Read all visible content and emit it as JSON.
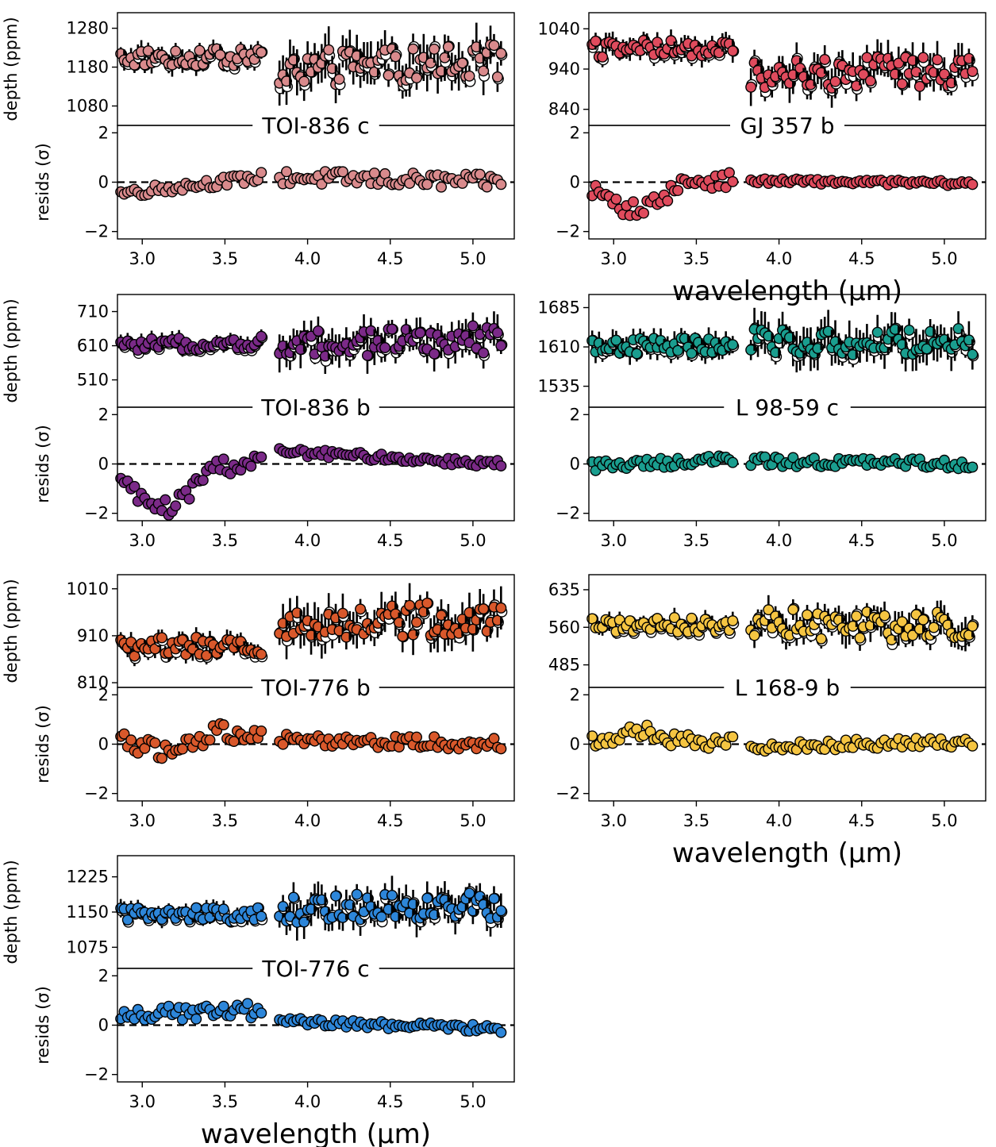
{
  "figure": {
    "depth_ylabel": "depth (ppm)",
    "resid_ylabel": "resids (σ)",
    "xlabel": "wavelength (μm)"
  },
  "chart_data": [
    {
      "type": "scatter",
      "title": "TOI-836 c",
      "color": "#d98a8c",
      "xlim": [
        2.85,
        5.25
      ],
      "x_ticks": [
        3.0,
        3.5,
        4.0,
        4.5,
        5.0
      ],
      "x_tick_labels": [
        "3.0",
        "3.5",
        "4.0",
        "4.5",
        "5.0"
      ],
      "xlabel": "",
      "depth": {
        "ylabel": "depth (ppm)",
        "ylim": [
          1030,
          1320
        ],
        "y_ticks": [
          1080,
          1180,
          1280
        ],
        "y_tick_labels": [
          "1080",
          "1180",
          "1280"
        ],
        "gap": [
          3.72,
          3.83
        ],
        "segments": [
          {
            "x_start": 2.87,
            "x_end": 3.72,
            "n": 42,
            "base": 1205,
            "trend": 0,
            "amp": 22,
            "err": 22
          },
          {
            "x_start": 3.83,
            "x_end": 5.17,
            "n": 64,
            "base": 1175,
            "trend": 20,
            "amp": 45,
            "err": 45
          }
        ]
      },
      "resid": {
        "ylabel": "resids (σ)",
        "ylim": [
          -2.3,
          2.3
        ],
        "y_ticks": [
          -2,
          0,
          2
        ],
        "y_tick_labels": [
          "−2",
          "0",
          "2"
        ],
        "segments": [
          {
            "x_start": 2.87,
            "x_end": 3.72,
            "n": 42,
            "start": -0.45,
            "end": 0.2,
            "dip": 0,
            "amp": 0.2
          },
          {
            "x_start": 3.83,
            "x_end": 5.17,
            "n": 64,
            "start": 0.2,
            "end": 0.0,
            "dip": 0,
            "amp": 0.3
          }
        ]
      }
    },
    {
      "type": "scatter",
      "title": "GJ 357 b",
      "color": "#e04b5d",
      "xlim": [
        2.85,
        5.25
      ],
      "x_ticks": [
        3.0,
        3.5,
        4.0,
        4.5,
        5.0
      ],
      "x_tick_labels": [
        "3.0",
        "3.5",
        "4.0",
        "4.5",
        "5.0"
      ],
      "xlabel": "wavelength (μm)",
      "depth": {
        "ylabel": "",
        "ylim": [
          800,
          1080
        ],
        "y_ticks": [
          840,
          940,
          1040
        ],
        "y_tick_labels": [
          "840",
          "940",
          "1040"
        ],
        "gap": [
          3.72,
          3.83
        ],
        "segments": [
          {
            "x_start": 2.87,
            "x_end": 3.72,
            "n": 42,
            "base": 990,
            "trend": 0,
            "amp": 22,
            "err": 22
          },
          {
            "x_start": 3.83,
            "x_end": 5.17,
            "n": 64,
            "base": 925,
            "trend": 10,
            "amp": 40,
            "err": 35
          }
        ]
      },
      "resid": {
        "ylabel": "",
        "ylim": [
          -2.3,
          2.3
        ],
        "y_ticks": [
          -2,
          0,
          2
        ],
        "y_tick_labels": [
          "−2",
          "0",
          "2"
        ],
        "segments": [
          {
            "x_start": 2.87,
            "x_end": 3.72,
            "n": 42,
            "start": -0.3,
            "end": 0.1,
            "dip": -0.9,
            "amp": 0.3
          },
          {
            "x_start": 3.83,
            "x_end": 5.17,
            "n": 64,
            "start": 0.05,
            "end": -0.05,
            "dip": 0,
            "amp": 0.1
          }
        ]
      }
    },
    {
      "type": "scatter",
      "title": "TOI-836 b",
      "color": "#7b2a88",
      "xlim": [
        2.85,
        5.25
      ],
      "x_ticks": [
        3.0,
        3.5,
        4.0,
        4.5,
        5.0
      ],
      "x_tick_labels": [
        "3.0",
        "3.5",
        "4.0",
        "4.5",
        "5.0"
      ],
      "xlabel": "",
      "depth": {
        "ylabel": "depth (ppm)",
        "ylim": [
          430,
          760
        ],
        "y_ticks": [
          510,
          610,
          710
        ],
        "y_tick_labels": [
          "510",
          "610",
          "710"
        ],
        "gap": [
          3.72,
          3.83
        ],
        "segments": [
          {
            "x_start": 2.87,
            "x_end": 3.72,
            "n": 42,
            "base": 610,
            "trend": 10,
            "amp": 18,
            "err": 18
          },
          {
            "x_start": 3.83,
            "x_end": 5.17,
            "n": 64,
            "base": 615,
            "trend": 15,
            "amp": 40,
            "err": 40
          }
        ]
      },
      "resid": {
        "ylabel": "resids (σ)",
        "ylim": [
          -2.3,
          2.3
        ],
        "y_ticks": [
          -2,
          0,
          2
        ],
        "y_tick_labels": [
          "−2",
          "0",
          "2"
        ],
        "segments": [
          {
            "x_start": 2.87,
            "x_end": 3.72,
            "n": 42,
            "start": -0.6,
            "end": 0.1,
            "dip": -1.4,
            "amp": 0.35
          },
          {
            "x_start": 3.83,
            "x_end": 5.17,
            "n": 64,
            "start": 0.5,
            "end": 0.0,
            "dip": 0,
            "amp": 0.15
          }
        ]
      }
    },
    {
      "type": "scatter",
      "title": "L 98-59 c",
      "color": "#1a9e8f",
      "xlim": [
        2.85,
        5.25
      ],
      "x_ticks": [
        3.0,
        3.5,
        4.0,
        4.5,
        5.0
      ],
      "x_tick_labels": [
        "3.0",
        "3.5",
        "4.0",
        "4.5",
        "5.0"
      ],
      "xlabel": "",
      "depth": {
        "ylabel": "",
        "ylim": [
          1495,
          1710
        ],
        "y_ticks": [
          1535,
          1610,
          1685
        ],
        "y_tick_labels": [
          "1535",
          "1610",
          "1685"
        ],
        "gap": [
          3.72,
          3.83
        ],
        "segments": [
          {
            "x_start": 2.87,
            "x_end": 3.72,
            "n": 42,
            "base": 1612,
            "trend": 0,
            "amp": 15,
            "err": 18
          },
          {
            "x_start": 3.83,
            "x_end": 5.17,
            "n": 64,
            "base": 1620,
            "trend": 0,
            "amp": 25,
            "err": 30
          }
        ]
      },
      "resid": {
        "ylabel": "",
        "ylim": [
          -2.3,
          2.3
        ],
        "y_ticks": [
          -2,
          0,
          2
        ],
        "y_tick_labels": [
          "−2",
          "0",
          "2"
        ],
        "segments": [
          {
            "x_start": 2.87,
            "x_end": 3.72,
            "n": 42,
            "start": -0.1,
            "end": 0.2,
            "dip": 0,
            "amp": 0.2
          },
          {
            "x_start": 3.83,
            "x_end": 5.17,
            "n": 64,
            "start": 0.1,
            "end": 0.0,
            "dip": 0,
            "amp": 0.2
          }
        ]
      }
    },
    {
      "type": "scatter",
      "title": "TOI-776 b",
      "color": "#d9582b",
      "xlim": [
        2.85,
        5.25
      ],
      "x_ticks": [
        3.0,
        3.5,
        4.0,
        4.5,
        5.0
      ],
      "x_tick_labels": [
        "3.0",
        "3.5",
        "4.0",
        "4.5",
        "5.0"
      ],
      "xlabel": "",
      "depth": {
        "ylabel": "depth (ppm)",
        "ylim": [
          800,
          1040
        ],
        "y_ticks": [
          810,
          910,
          1010
        ],
        "y_tick_labels": [
          "810",
          "910",
          "1010"
        ],
        "gap": [
          3.72,
          3.83
        ],
        "segments": [
          {
            "x_start": 2.87,
            "x_end": 3.72,
            "n": 42,
            "base": 885,
            "trend": 0,
            "amp": 22,
            "err": 18
          },
          {
            "x_start": 3.83,
            "x_end": 5.17,
            "n": 64,
            "base": 935,
            "trend": 15,
            "amp": 35,
            "err": 35
          }
        ]
      },
      "resid": {
        "ylabel": "resids (σ)",
        "ylim": [
          -2.3,
          2.3
        ],
        "y_ticks": [
          -2,
          0,
          2
        ],
        "y_tick_labels": [
          "−2",
          "0",
          "2"
        ],
        "segments": [
          {
            "x_start": 2.87,
            "x_end": 3.72,
            "n": 42,
            "start": 0.4,
            "end": 0.5,
            "dip": -0.7,
            "amp": 0.4
          },
          {
            "x_start": 3.83,
            "x_end": 5.17,
            "n": 64,
            "start": 0.2,
            "end": 0.0,
            "dip": 0,
            "amp": 0.25
          }
        ]
      }
    },
    {
      "type": "scatter",
      "title": "L 168-9 b",
      "color": "#f5c542",
      "xlim": [
        2.85,
        5.25
      ],
      "x_ticks": [
        3.0,
        3.5,
        4.0,
        4.5,
        5.0
      ],
      "x_tick_labels": [
        "3.0",
        "3.5",
        "4.0",
        "4.5",
        "5.0"
      ],
      "xlabel": "wavelength (μm)",
      "depth": {
        "ylabel": "",
        "ylim": [
          440,
          665
        ],
        "y_ticks": [
          485,
          560,
          635
        ],
        "y_tick_labels": [
          "485",
          "560",
          "635"
        ],
        "gap": [
          3.72,
          3.83
        ],
        "segments": [
          {
            "x_start": 2.87,
            "x_end": 3.72,
            "n": 42,
            "base": 565,
            "trend": 0,
            "amp": 15,
            "err": 14
          },
          {
            "x_start": 3.83,
            "x_end": 5.17,
            "n": 64,
            "base": 570,
            "trend": -10,
            "amp": 30,
            "err": 25
          }
        ]
      },
      "resid": {
        "ylabel": "",
        "ylim": [
          -2.3,
          2.3
        ],
        "y_ticks": [
          -2,
          0,
          2
        ],
        "y_tick_labels": [
          "−2",
          "0",
          "2"
        ],
        "segments": [
          {
            "x_start": 2.87,
            "x_end": 3.72,
            "n": 42,
            "start": 0.1,
            "end": 0.0,
            "dip": 0.4,
            "amp": 0.35
          },
          {
            "x_start": 3.83,
            "x_end": 5.17,
            "n": 64,
            "start": -0.1,
            "end": 0.1,
            "dip": 0,
            "amp": 0.2
          }
        ]
      }
    },
    {
      "type": "scatter",
      "title": "TOI-776 c",
      "color": "#2d86d9",
      "xlim": [
        2.85,
        5.25
      ],
      "x_ticks": [
        3.0,
        3.5,
        4.0,
        4.5,
        5.0
      ],
      "x_tick_labels": [
        "3.0",
        "3.5",
        "4.0",
        "4.5",
        "5.0"
      ],
      "xlabel": "wavelength (μm)",
      "depth": {
        "ylabel": "depth (ppm)",
        "ylim": [
          1030,
          1270
        ],
        "y_ticks": [
          1075,
          1150,
          1225
        ],
        "y_tick_labels": [
          "1075",
          "1150",
          "1225"
        ],
        "gap": [
          3.72,
          3.83
        ],
        "segments": [
          {
            "x_start": 2.87,
            "x_end": 3.72,
            "n": 42,
            "base": 1145,
            "trend": 0,
            "amp": 15,
            "err": 14
          },
          {
            "x_start": 3.83,
            "x_end": 5.17,
            "n": 64,
            "base": 1155,
            "trend": 10,
            "amp": 30,
            "err": 30
          }
        ]
      },
      "resid": {
        "ylabel": "resids (σ)",
        "ylim": [
          -2.3,
          2.3
        ],
        "y_ticks": [
          -2,
          0,
          2
        ],
        "y_tick_labels": [
          "−2",
          "0",
          "2"
        ],
        "segments": [
          {
            "x_start": 2.87,
            "x_end": 3.72,
            "n": 42,
            "start": 0.4,
            "end": 0.6,
            "dip": 0,
            "amp": 0.3
          },
          {
            "x_start": 3.83,
            "x_end": 5.17,
            "n": 64,
            "start": 0.15,
            "end": -0.15,
            "dip": 0,
            "amp": 0.15
          }
        ]
      }
    }
  ]
}
